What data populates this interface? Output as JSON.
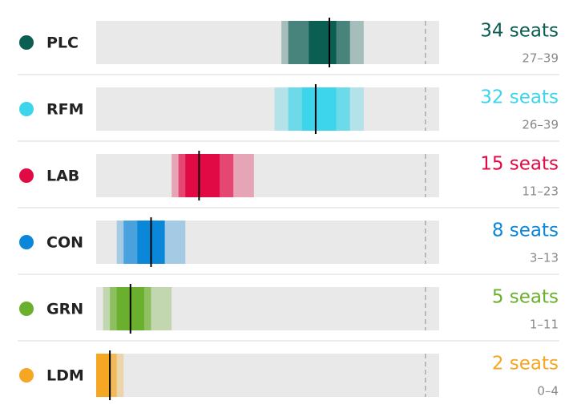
{
  "chart_data": {
    "type": "interval",
    "xlim": [
      0,
      50
    ],
    "reference_line": 48,
    "series": [
      {
        "name": "PLC",
        "color": "#0b5e52",
        "values": [
          34
        ],
        "value_labels": [
          "34 seats"
        ],
        "outer": [
          27,
          39
        ],
        "mid": [
          28,
          37
        ],
        "inner": [
          31,
          35
        ],
        "range_label": "27–39"
      },
      {
        "name": "RFM",
        "color": "#3dd5eb",
        "values": [
          32
        ],
        "value_labels": [
          "32 seats"
        ],
        "outer": [
          26,
          39
        ],
        "mid": [
          28,
          37
        ],
        "inner": [
          30,
          35
        ],
        "range_label": "26–39"
      },
      {
        "name": "LAB",
        "color": "#e20a45",
        "values": [
          15
        ],
        "value_labels": [
          "15 seats"
        ],
        "outer": [
          11,
          23
        ],
        "mid": [
          12,
          20
        ],
        "inner": [
          13,
          18
        ],
        "range_label": "11–23"
      },
      {
        "name": "CON",
        "color": "#0b87d9",
        "values": [
          8
        ],
        "value_labels": [
          "8 seats"
        ],
        "outer": [
          3,
          13
        ],
        "mid": [
          4,
          10
        ],
        "inner": [
          6,
          10
        ],
        "range_label": "3–13"
      },
      {
        "name": "GRN",
        "color": "#6ab02e",
        "values": [
          5
        ],
        "value_labels": [
          "5 seats"
        ],
        "outer": [
          1,
          11
        ],
        "mid": [
          2,
          8
        ],
        "inner": [
          3,
          7
        ],
        "range_label": "1–11"
      },
      {
        "name": "LDM",
        "color": "#f5a623",
        "values": [
          2
        ],
        "value_labels": [
          "2 seats"
        ],
        "outer": [
          0,
          4
        ],
        "mid": [
          0,
          3
        ],
        "inner": [
          0,
          2
        ],
        "range_label": "0–4"
      }
    ]
  }
}
